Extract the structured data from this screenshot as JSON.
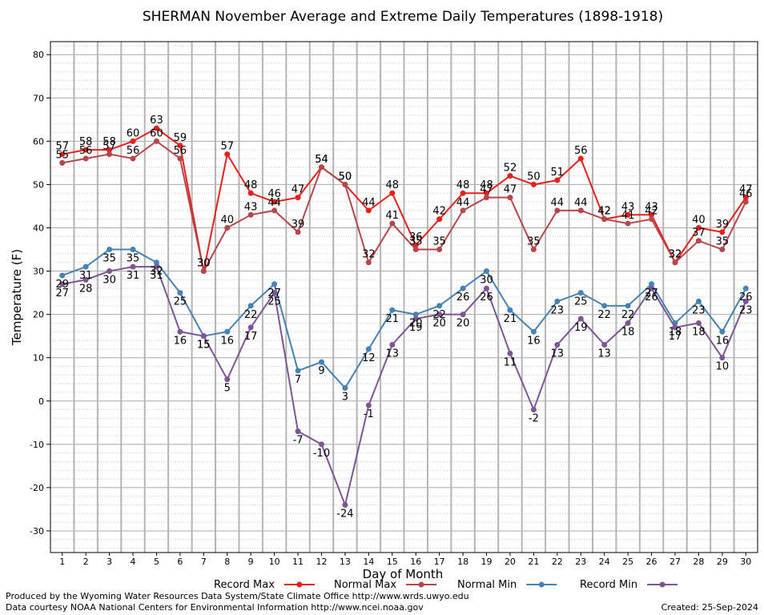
{
  "chart_data": {
    "type": "line",
    "title": "SHERMAN November Average and Extreme Daily Temperatures (1898-1918)",
    "xlabel": "Day of Month",
    "ylabel": "Temperature (F)",
    "ylim": [
      -35,
      83
    ],
    "yticks": [
      -30,
      -20,
      -10,
      0,
      10,
      20,
      30,
      40,
      50,
      60,
      70,
      80
    ],
    "grid": true,
    "legend_position": "bottom",
    "x": [
      1,
      2,
      3,
      4,
      5,
      6,
      7,
      8,
      9,
      10,
      11,
      12,
      13,
      14,
      15,
      16,
      17,
      18,
      19,
      20,
      21,
      22,
      23,
      24,
      25,
      26,
      27,
      28,
      29,
      30
    ],
    "series": [
      {
        "name": "Record Max",
        "color": "#e8201c",
        "label_pos": "above",
        "values": [
          57,
          58,
          58,
          60,
          63,
          59,
          30,
          57,
          48,
          46,
          47,
          54,
          50,
          44,
          48,
          36,
          42,
          48,
          48,
          52,
          50,
          51,
          56,
          42,
          43,
          43,
          32,
          40,
          39,
          47
        ]
      },
      {
        "name": "Normal Max",
        "color": "#b5474b",
        "label_pos": "above",
        "values": [
          55,
          56,
          57,
          56,
          60,
          56,
          30,
          40,
          43,
          44,
          39,
          54,
          50,
          32,
          41,
          35,
          35,
          44,
          47,
          47,
          35,
          44,
          44,
          42,
          41,
          42,
          32,
          37,
          35,
          46
        ]
      },
      {
        "name": "Normal Min",
        "color": "#4682b4",
        "label_pos": "below",
        "values": [
          29,
          31,
          35,
          35,
          32,
          25,
          15,
          16,
          22,
          27,
          7,
          9,
          3,
          12,
          21,
          20,
          22,
          26,
          30,
          21,
          16,
          23,
          25,
          22,
          22,
          27,
          18,
          23,
          16,
          26
        ]
      },
      {
        "name": "Record Min",
        "color": "#7e5595",
        "label_pos": "below",
        "values": [
          27,
          28,
          30,
          31,
          31,
          16,
          15,
          5,
          17,
          25,
          -7,
          -10,
          -24,
          -1,
          13,
          19,
          20,
          20,
          26,
          11,
          -2,
          13,
          19,
          13,
          18,
          26,
          17,
          18,
          10,
          23
        ]
      }
    ]
  },
  "footer": {
    "produced_by": "Produced by the Wyoming Water Resources Data System/State Climate Office http://www.wrds.uwyo.edu",
    "courtesy": "Data courtesy NOAA National Centers for Environmental Information http://www.ncei.noaa.gov",
    "created": "Created: 25-Sep-2024"
  }
}
